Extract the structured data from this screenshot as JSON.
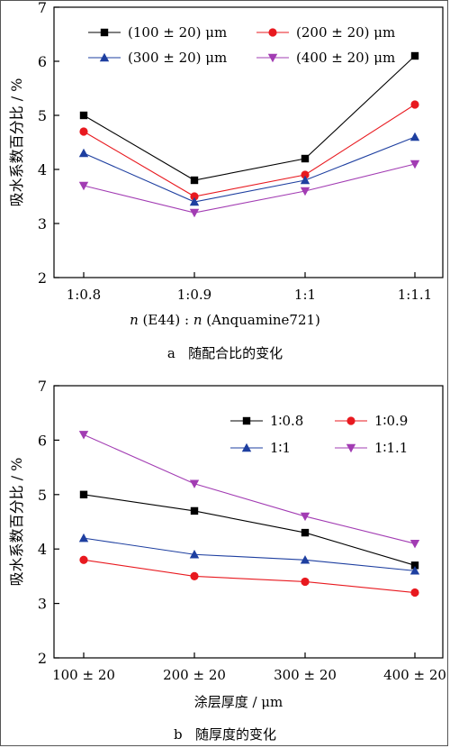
{
  "chart_data": [
    {
      "type": "line",
      "caption": "a   随配合比的变化",
      "xlabel_prefix": "n",
      "xlabel_mid": " (E44) : ",
      "xlabel_n2": "n",
      "xlabel_suffix": " (Anquamine721)",
      "ylabel": "吸水系数百分比 / %",
      "categories": [
        "1:0.8",
        "1:0.9",
        "1:1",
        "1:1.1"
      ],
      "ylim": [
        2,
        7
      ],
      "yticks": [
        2,
        3,
        4,
        5,
        6,
        7
      ],
      "legend_position": "top",
      "series": [
        {
          "name": "(100 ± 20) μm",
          "color": "#000000",
          "marker": "square",
          "values": [
            5.0,
            3.8,
            4.2,
            6.1
          ]
        },
        {
          "name": "(200 ± 20) μm",
          "color": "#e8191f",
          "marker": "circle",
          "values": [
            4.7,
            3.5,
            3.9,
            5.2
          ]
        },
        {
          "name": "(300 ± 20) μm",
          "color": "#1e3fa0",
          "marker": "triangle-up",
          "values": [
            4.3,
            3.4,
            3.8,
            4.6
          ]
        },
        {
          "name": "(400 ± 20) μm",
          "color": "#a23cb3",
          "marker": "triangle-down",
          "values": [
            3.7,
            3.2,
            3.6,
            4.1
          ]
        }
      ]
    },
    {
      "type": "line",
      "caption": "b   随厚度的变化",
      "xlabel": "涂层厚度 / μm",
      "ylabel": "吸水系数百分比 / %",
      "categories": [
        "100 ± 20",
        "200 ± 20",
        "300 ± 20",
        "400 ± 20"
      ],
      "ylim": [
        2,
        7
      ],
      "yticks": [
        2,
        3,
        4,
        5,
        6,
        7
      ],
      "legend_position": "top-right",
      "series": [
        {
          "name": "1∶0.8",
          "color": "#000000",
          "marker": "square",
          "values": [
            5.0,
            4.7,
            4.3,
            3.7
          ]
        },
        {
          "name": "1∶0.9",
          "color": "#e8191f",
          "marker": "circle",
          "values": [
            3.8,
            3.5,
            3.4,
            3.2
          ]
        },
        {
          "name": "1∶1",
          "color": "#1e3fa0",
          "marker": "triangle-up",
          "values": [
            4.2,
            3.9,
            3.8,
            3.6
          ]
        },
        {
          "name": "1∶1.1",
          "color": "#a23cb3",
          "marker": "triangle-down",
          "values": [
            6.1,
            5.2,
            4.6,
            4.1
          ]
        }
      ]
    }
  ]
}
